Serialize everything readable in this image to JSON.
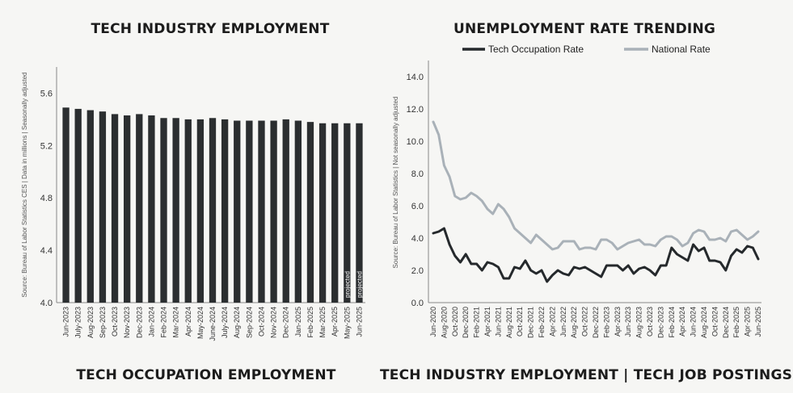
{
  "titles": {
    "left_top": "TECH INDUSTRY EMPLOYMENT",
    "right_top": "UNEMPLOYMENT RATE TRENDING",
    "left_bottom": "TECH OCCUPATION EMPLOYMENT",
    "right_bottom": "TECH INDUSTRY EMPLOYMENT | TECH JOB POSTINGS"
  },
  "colors": {
    "bar": "#2b2e30",
    "tech_line": "#25292c",
    "national_line": "#a9b1b8",
    "axis": "#888888"
  },
  "chart_data": [
    {
      "type": "bar",
      "title": "TECH INDUSTRY EMPLOYMENT",
      "ylabel": "Source: Bureau of Labor Statistics CES | Data in millions | Seasonally adjusted",
      "ylim": [
        4.0,
        5.8
      ],
      "yticks": [
        "4.0",
        "4.4",
        "4.8",
        "5.2",
        "5.6"
      ],
      "categories": [
        "Jun-2023",
        "July-2023",
        "Aug-2023",
        "Sep-2023",
        "Oct-2023",
        "Nov-2023",
        "Dec-2023",
        "Jan-2024",
        "Feb-2024",
        "Mar-2024",
        "Apr-2024",
        "May-2024",
        "June-2024",
        "July-2024",
        "Aug-2024",
        "Sep-2024",
        "Oct-2024",
        "Nov-2024",
        "Dec-2024",
        "Jan-2025",
        "Feb-2025",
        "Mar-2025",
        "Apr-2025",
        "May-2025",
        "Jun-2025"
      ],
      "values": [
        5.49,
        5.48,
        5.47,
        5.46,
        5.44,
        5.43,
        5.44,
        5.43,
        5.41,
        5.41,
        5.4,
        5.4,
        5.41,
        5.4,
        5.39,
        5.39,
        5.39,
        5.39,
        5.4,
        5.39,
        5.38,
        5.37,
        5.37,
        5.37,
        5.37
      ],
      "annotations": [
        {
          "category": "May-2025",
          "text": "projected"
        },
        {
          "category": "Jun-2025",
          "text": "projected"
        }
      ]
    },
    {
      "type": "line",
      "title": "UNEMPLOYMENT RATE TRENDING",
      "ylabel": "Source: Bureau of Labor Statistics | Not seasonally adjusted",
      "ylim": [
        0.0,
        15.0
      ],
      "yticks": [
        "0.0",
        "2.0",
        "4.0",
        "6.0",
        "8.0",
        "10.0",
        "12.0",
        "14.0"
      ],
      "legend_position": "top",
      "x_labels": [
        "Jun-2020",
        "Aug-2020",
        "Oct-2020",
        "Dec-2020",
        "Feb-2021",
        "Apr-2021",
        "Jun-2021",
        "Aug-2021",
        "Oct-2021",
        "Dec-2021",
        "Feb-2022",
        "Apr-2022",
        "Jun-2022",
        "Aug-2022",
        "Oct-2022",
        "Dec-2022",
        "Feb-2023",
        "Apr-2023",
        "Jun-2023",
        "Aug-2023",
        "Oct-2023",
        "Dec-2023",
        "Feb-2024",
        "Apr-2024",
        "Jun-2024",
        "Aug-2024",
        "Oct-2024",
        "Dec-2024",
        "Feb-2025",
        "Apr-2025",
        "Jun-2025"
      ],
      "series": [
        {
          "name": "Tech Occupation Rate",
          "values": [
            4.3,
            4.4,
            4.6,
            3.6,
            2.9,
            2.5,
            3.0,
            2.4,
            2.4,
            2.0,
            2.5,
            2.4,
            2.2,
            1.5,
            1.5,
            2.2,
            2.1,
            2.6,
            2.0,
            1.8,
            2.0,
            1.3,
            1.7,
            2.0,
            1.8,
            1.7,
            2.2,
            2.1,
            2.2,
            2.0,
            1.8,
            1.6,
            2.3,
            2.3,
            2.3,
            2.0,
            2.3,
            1.8,
            2.1,
            2.2,
            2.0,
            1.7,
            2.3,
            2.3,
            3.4,
            3.0,
            2.8,
            2.6,
            3.6,
            3.2,
            3.4,
            2.6,
            2.6,
            2.5,
            2.0,
            2.9,
            3.3,
            3.1,
            3.5,
            3.4,
            2.7
          ]
        },
        {
          "name": "National Rate",
          "values": [
            11.2,
            10.4,
            8.5,
            7.8,
            6.6,
            6.4,
            6.5,
            6.8,
            6.6,
            6.3,
            5.8,
            5.5,
            6.1,
            5.8,
            5.3,
            4.6,
            4.3,
            4.0,
            3.7,
            4.2,
            3.9,
            3.6,
            3.3,
            3.4,
            3.8,
            3.8,
            3.8,
            3.3,
            3.4,
            3.4,
            3.3,
            3.9,
            3.9,
            3.7,
            3.3,
            3.5,
            3.7,
            3.8,
            3.9,
            3.6,
            3.6,
            3.5,
            3.9,
            4.1,
            4.1,
            3.9,
            3.5,
            3.7,
            4.3,
            4.5,
            4.4,
            3.9,
            3.9,
            4.0,
            3.8,
            4.4,
            4.5,
            4.2,
            3.9,
            4.1,
            4.4
          ]
        }
      ]
    }
  ]
}
